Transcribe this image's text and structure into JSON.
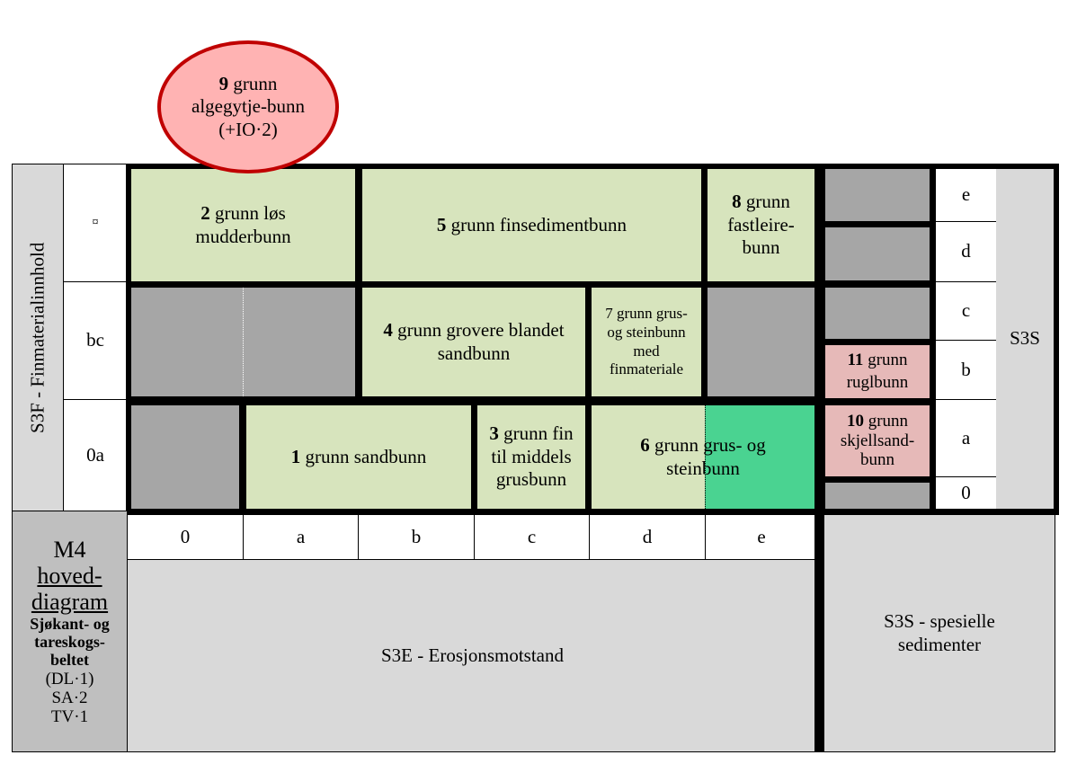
{
  "axes": {
    "vertical_label": "S3F - Finmaterialinnhold",
    "rows": [
      "¤",
      "bc",
      "0a"
    ],
    "horizontal_ticks": [
      "0",
      "a",
      "b",
      "c",
      "d",
      "e"
    ],
    "horizontal_label": "S3E - Erosjonsmotstand",
    "special_ticks": [
      "e",
      "d",
      "c",
      "b",
      "a",
      "0"
    ],
    "special_label_short": "S3S",
    "special_label": "S3S - spesielle sedimenter"
  },
  "title_box": {
    "code": "M4",
    "title_line1": "hoved-",
    "title_line2": "diagram",
    "subtitle": "Sjøkant- og tareskogs-beltet",
    "refs": [
      "(DL·1)",
      "SA·2",
      "TV·1"
    ]
  },
  "units": {
    "u1": {
      "num": "1",
      "text": "grunn sandbunn"
    },
    "u2": {
      "num": "2",
      "text": "grunn løs mudderbunn"
    },
    "u3": {
      "num": "3",
      "text": "grunn fin til middels grusbunn"
    },
    "u4": {
      "num": "4",
      "text": "grunn grovere blandet sandbunn"
    },
    "u5": {
      "num": "5",
      "text": "grunn finsedimentbunn"
    },
    "u6": {
      "num": "6",
      "text": "grunn grus- og steinbunn"
    },
    "u7": {
      "num": "7",
      "text": "grunn grus- og steinbunn med finmateriale"
    },
    "u8": {
      "num": "8",
      "text": "grunn fastleire-bunn"
    },
    "u9": {
      "num": "9",
      "text": "grunn algegytje-bunn (+IO·2)"
    },
    "u10": {
      "num": "10",
      "text": "grunn skjellsand-bunn"
    },
    "u11": {
      "num": "11",
      "text": "grunn ruglbunn"
    }
  },
  "colors": {
    "unit_fill": "#d7e4bd",
    "empty_fill": "#a6a6a6",
    "special_fill": "#e6b9b8",
    "highlight_fill": "#4ad391",
    "outside_unit_fill": "#ffb3b3",
    "outside_unit_stroke": "#c00000",
    "label_fill": "#d9d9d9"
  }
}
